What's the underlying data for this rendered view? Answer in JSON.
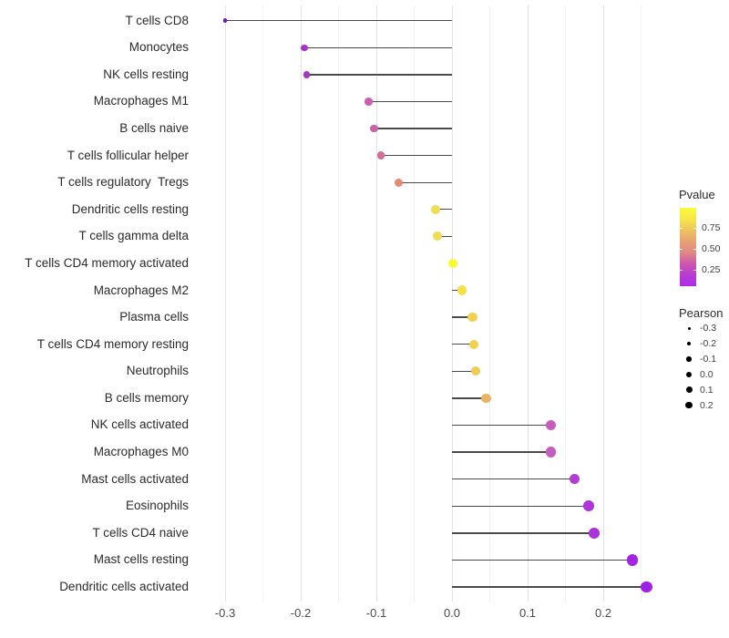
{
  "chart_data": {
    "type": "scatter",
    "variant": "lollipop",
    "orientation": "horizontal",
    "title": "",
    "xlabel": "",
    "ylabel": "",
    "x_axis": {
      "tick_labels": [
        "-0.3",
        "-0.2",
        "-0.1",
        "0.0",
        "0.1",
        "0.2"
      ],
      "tick_values": [
        -0.3,
        -0.2,
        -0.1,
        0.0,
        0.1,
        0.2
      ],
      "minor_gridlines": [
        -0.25,
        -0.15,
        -0.05,
        0.05,
        0.15,
        0.25
      ],
      "range": [
        -0.33,
        0.285
      ],
      "grid": true
    },
    "stem_color": "#4a4a4a",
    "points": [
      {
        "label": "T cells CD8",
        "pearson": -0.3,
        "color": "#7a15c8"
      },
      {
        "label": "Monocytes",
        "pearson": -0.195,
        "color": "#a833c9"
      },
      {
        "label": "NK cells resting",
        "pearson": -0.192,
        "color": "#a833c9"
      },
      {
        "label": "Macrophages M1",
        "pearson": -0.11,
        "color": "#cd5fad"
      },
      {
        "label": "B cells naive",
        "pearson": -0.103,
        "color": "#ce5fa9"
      },
      {
        "label": "T cells follicular helper",
        "pearson": -0.094,
        "color": "#d56f96"
      },
      {
        "label": "T cells regulatory  Tregs",
        "pearson": -0.07,
        "color": "#e68a72"
      },
      {
        "label": "Dendritic cells resting",
        "pearson": -0.022,
        "color": "#f2dc55"
      },
      {
        "label": "T cells gamma delta",
        "pearson": -0.019,
        "color": "#f2dc55"
      },
      {
        "label": "T cells CD4 memory activated",
        "pearson": 0.001,
        "color": "#fbf92f"
      },
      {
        "label": "Macrophages M2",
        "pearson": 0.013,
        "color": "#f6e14a"
      },
      {
        "label": "Plasma cells",
        "pearson": 0.027,
        "color": "#f2d150"
      },
      {
        "label": "T cells CD4 memory resting",
        "pearson": 0.029,
        "color": "#f2d150"
      },
      {
        "label": "Neutrophils",
        "pearson": 0.031,
        "color": "#f0cb55"
      },
      {
        "label": "B cells memory",
        "pearson": 0.045,
        "color": "#ebb364"
      },
      {
        "label": "NK cells activated",
        "pearson": 0.131,
        "color": "#c75bc0"
      },
      {
        "label": "Macrophages M0",
        "pearson": 0.131,
        "color": "#c55cbf"
      },
      {
        "label": "Mast cells activated",
        "pearson": 0.162,
        "color": "#b23dd2"
      },
      {
        "label": "Eosinophils",
        "pearson": 0.181,
        "color": "#ae36d8"
      },
      {
        "label": "T cells CD4 naive",
        "pearson": 0.188,
        "color": "#ac31da"
      },
      {
        "label": "Mast cells resting",
        "pearson": 0.239,
        "color": "#a524e3"
      },
      {
        "label": "Dendritic cells activated",
        "pearson": 0.257,
        "color": "#a021e6"
      }
    ],
    "legends": {
      "pvalue": {
        "title": "Pvalue",
        "tick_labels": [
          "0.75",
          "0.50",
          "0.25"
        ],
        "tick_values": [
          0.75,
          0.5,
          0.25
        ],
        "gradient_top_to_bottom": [
          "#fcfa3b",
          "#f6e748",
          "#efc35f",
          "#e7a175",
          "#e18a85",
          "#cc56ae",
          "#b93bd2",
          "#af2ce8"
        ]
      },
      "pearson": {
        "title": "Pearson",
        "items": [
          {
            "label": "-0.3",
            "value": -0.3
          },
          {
            "label": "-0.2",
            "value": -0.2
          },
          {
            "label": "-0.1",
            "value": -0.1
          },
          {
            "label": "0.0",
            "value": 0.0
          },
          {
            "label": "0.1",
            "value": 0.1
          },
          {
            "label": "0.2",
            "value": 0.2
          }
        ]
      }
    }
  }
}
